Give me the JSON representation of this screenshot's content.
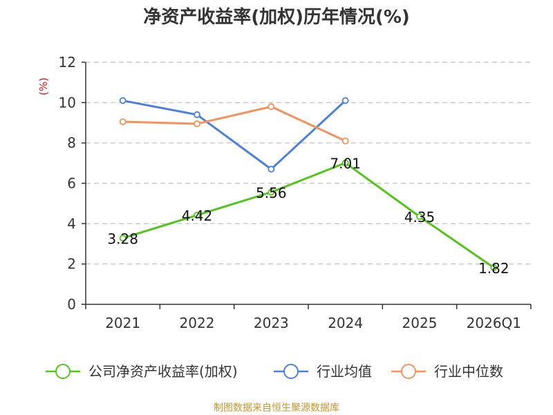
{
  "chart_data": {
    "type": "line",
    "title": "净资产收益率(加权)历年情况(%)",
    "ylabel": "(%)",
    "xlabel": "",
    "categories": [
      "2021",
      "2022",
      "2023",
      "2024",
      "2025",
      "2026Q1"
    ],
    "ylim": [
      0,
      12
    ],
    "yticks": [
      0,
      2,
      4,
      6,
      8,
      10,
      12
    ],
    "series": [
      {
        "name": "公司净资产收益率(加权)",
        "color": "#52c41a",
        "values": [
          3.28,
          4.42,
          5.56,
          7.01,
          4.35,
          1.82
        ],
        "labels": [
          "3.28",
          "4.42",
          "5.56",
          "7.01",
          "4.35",
          "1.82"
        ]
      },
      {
        "name": "行业均值",
        "color": "#4a7fe0",
        "values": [
          10.1,
          9.4,
          6.7,
          10.1,
          null,
          null
        ]
      },
      {
        "name": "行业中位数",
        "color": "#f5915a",
        "values": [
          9.05,
          8.95,
          9.8,
          8.1,
          null,
          null
        ]
      }
    ],
    "grid": true,
    "legend_position": "bottom"
  },
  "source": "制图数据来自恒生聚源数据库"
}
